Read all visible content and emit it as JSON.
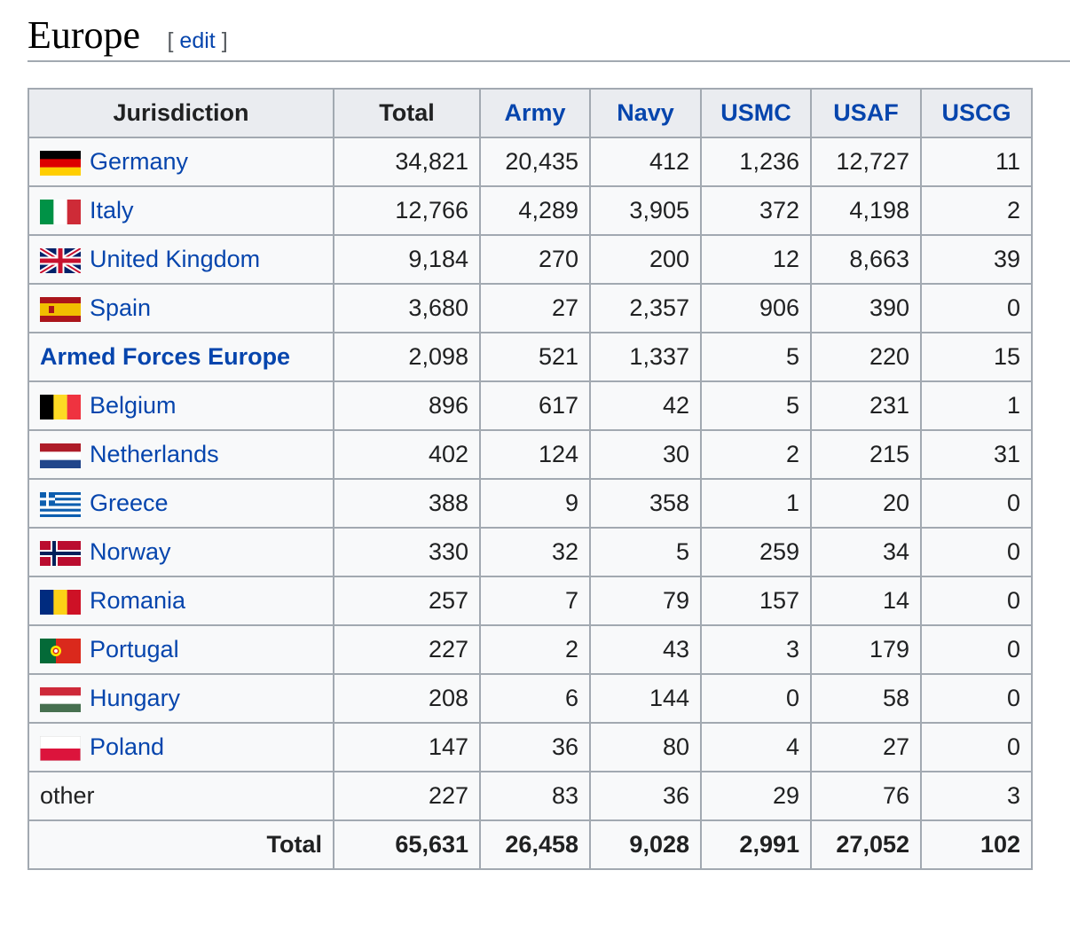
{
  "heading": {
    "title": "Europe",
    "edit_open": "[",
    "edit_label": "edit",
    "edit_close": "]"
  },
  "table": {
    "headers": [
      "Jurisdiction",
      "Total",
      "Army",
      "Navy",
      "USMC",
      "USAF",
      "USCG"
    ],
    "rows": [
      {
        "name": "Germany",
        "flag": "germany",
        "link": true,
        "values": [
          "34,821",
          "20,435",
          "412",
          "1,236",
          "12,727",
          "11"
        ]
      },
      {
        "name": "Italy",
        "flag": "italy",
        "link": true,
        "values": [
          "12,766",
          "4,289",
          "3,905",
          "372",
          "4,198",
          "2"
        ]
      },
      {
        "name": "United Kingdom",
        "flag": "uk",
        "link": true,
        "values": [
          "9,184",
          "270",
          "200",
          "12",
          "8,663",
          "39"
        ]
      },
      {
        "name": "Spain",
        "flag": "spain",
        "link": true,
        "values": [
          "3,680",
          "27",
          "2,357",
          "906",
          "390",
          "0"
        ]
      },
      {
        "name": "Armed Forces Europe",
        "flag": null,
        "link": true,
        "bold": true,
        "values": [
          "2,098",
          "521",
          "1,337",
          "5",
          "220",
          "15"
        ]
      },
      {
        "name": "Belgium",
        "flag": "belgium",
        "link": true,
        "values": [
          "896",
          "617",
          "42",
          "5",
          "231",
          "1"
        ]
      },
      {
        "name": "Netherlands",
        "flag": "netherlands",
        "link": true,
        "values": [
          "402",
          "124",
          "30",
          "2",
          "215",
          "31"
        ]
      },
      {
        "name": "Greece",
        "flag": "greece",
        "link": true,
        "values": [
          "388",
          "9",
          "358",
          "1",
          "20",
          "0"
        ]
      },
      {
        "name": "Norway",
        "flag": "norway",
        "link": true,
        "values": [
          "330",
          "32",
          "5",
          "259",
          "34",
          "0"
        ]
      },
      {
        "name": "Romania",
        "flag": "romania",
        "link": true,
        "values": [
          "257",
          "7",
          "79",
          "157",
          "14",
          "0"
        ]
      },
      {
        "name": "Portugal",
        "flag": "portugal",
        "link": true,
        "values": [
          "227",
          "2",
          "43",
          "3",
          "179",
          "0"
        ]
      },
      {
        "name": "Hungary",
        "flag": "hungary",
        "link": true,
        "values": [
          "208",
          "6",
          "144",
          "0",
          "58",
          "0"
        ]
      },
      {
        "name": "Poland",
        "flag": "poland",
        "link": true,
        "values": [
          "147",
          "36",
          "80",
          "4",
          "27",
          "0"
        ]
      },
      {
        "name": "other",
        "flag": null,
        "link": false,
        "values": [
          "227",
          "83",
          "36",
          "29",
          "76",
          "3"
        ]
      }
    ],
    "total": {
      "label": "Total",
      "values": [
        "65,631",
        "26,458",
        "9,028",
        "2,991",
        "27,052",
        "102"
      ]
    }
  },
  "colors": {
    "link": "#0645ad",
    "header_bg": "#eaecf0",
    "cell_bg": "#f8f9fa",
    "border": "#a2a9b1"
  }
}
